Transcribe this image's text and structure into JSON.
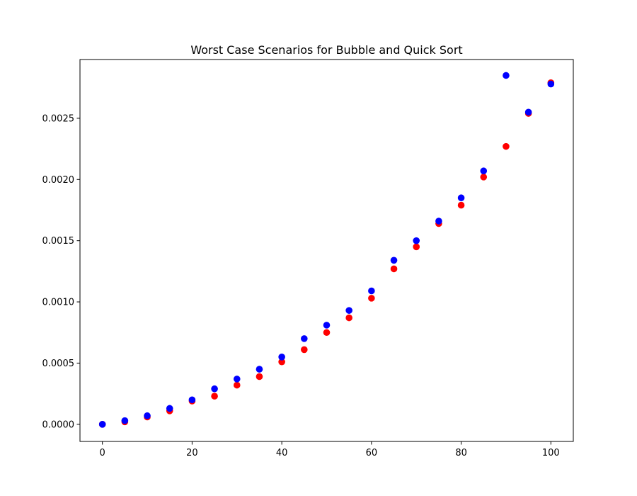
{
  "chart_data": {
    "type": "scatter",
    "title": "Worst Case Scenarios for Bubble and Quick Sort",
    "xlabel": "",
    "ylabel": "",
    "xlim": [
      -5,
      105
    ],
    "ylim": [
      -0.00014,
      0.00298
    ],
    "grid": false,
    "legend": "none",
    "x_ticks": [
      0,
      20,
      40,
      60,
      80,
      100
    ],
    "x_tick_labels": [
      "0",
      "20",
      "40",
      "60",
      "80",
      "100"
    ],
    "y_ticks": [
      0,
      0.0005,
      0.001,
      0.0015,
      0.002,
      0.0025
    ],
    "y_tick_labels": [
      "0.0000",
      "0.0005",
      "0.0010",
      "0.0015",
      "0.0020",
      "0.0025"
    ],
    "series": [
      {
        "color": "#ff0000",
        "x": [
          0,
          5,
          10,
          15,
          20,
          25,
          30,
          35,
          40,
          45,
          50,
          55,
          60,
          65,
          70,
          75,
          80,
          85,
          90,
          95,
          100
        ],
        "y": [
          0.0,
          2e-05,
          6e-05,
          0.00011,
          0.00019,
          0.00023,
          0.00032,
          0.00039,
          0.00051,
          0.00061,
          0.00075,
          0.00087,
          0.00103,
          0.00127,
          0.00145,
          0.00164,
          0.00179,
          0.00202,
          0.00227,
          0.00254,
          0.00279
        ]
      },
      {
        "color": "#0000ff",
        "x": [
          0,
          5,
          10,
          15,
          20,
          25,
          30,
          35,
          40,
          45,
          50,
          55,
          60,
          65,
          70,
          75,
          80,
          85,
          90,
          95,
          100
        ],
        "y": [
          0.0,
          3e-05,
          7e-05,
          0.00013,
          0.0002,
          0.00029,
          0.00037,
          0.00045,
          0.00055,
          0.0007,
          0.00081,
          0.00093,
          0.00109,
          0.00134,
          0.0015,
          0.00166,
          0.00185,
          0.00207,
          0.00285,
          0.00255,
          0.00278
        ]
      }
    ]
  }
}
